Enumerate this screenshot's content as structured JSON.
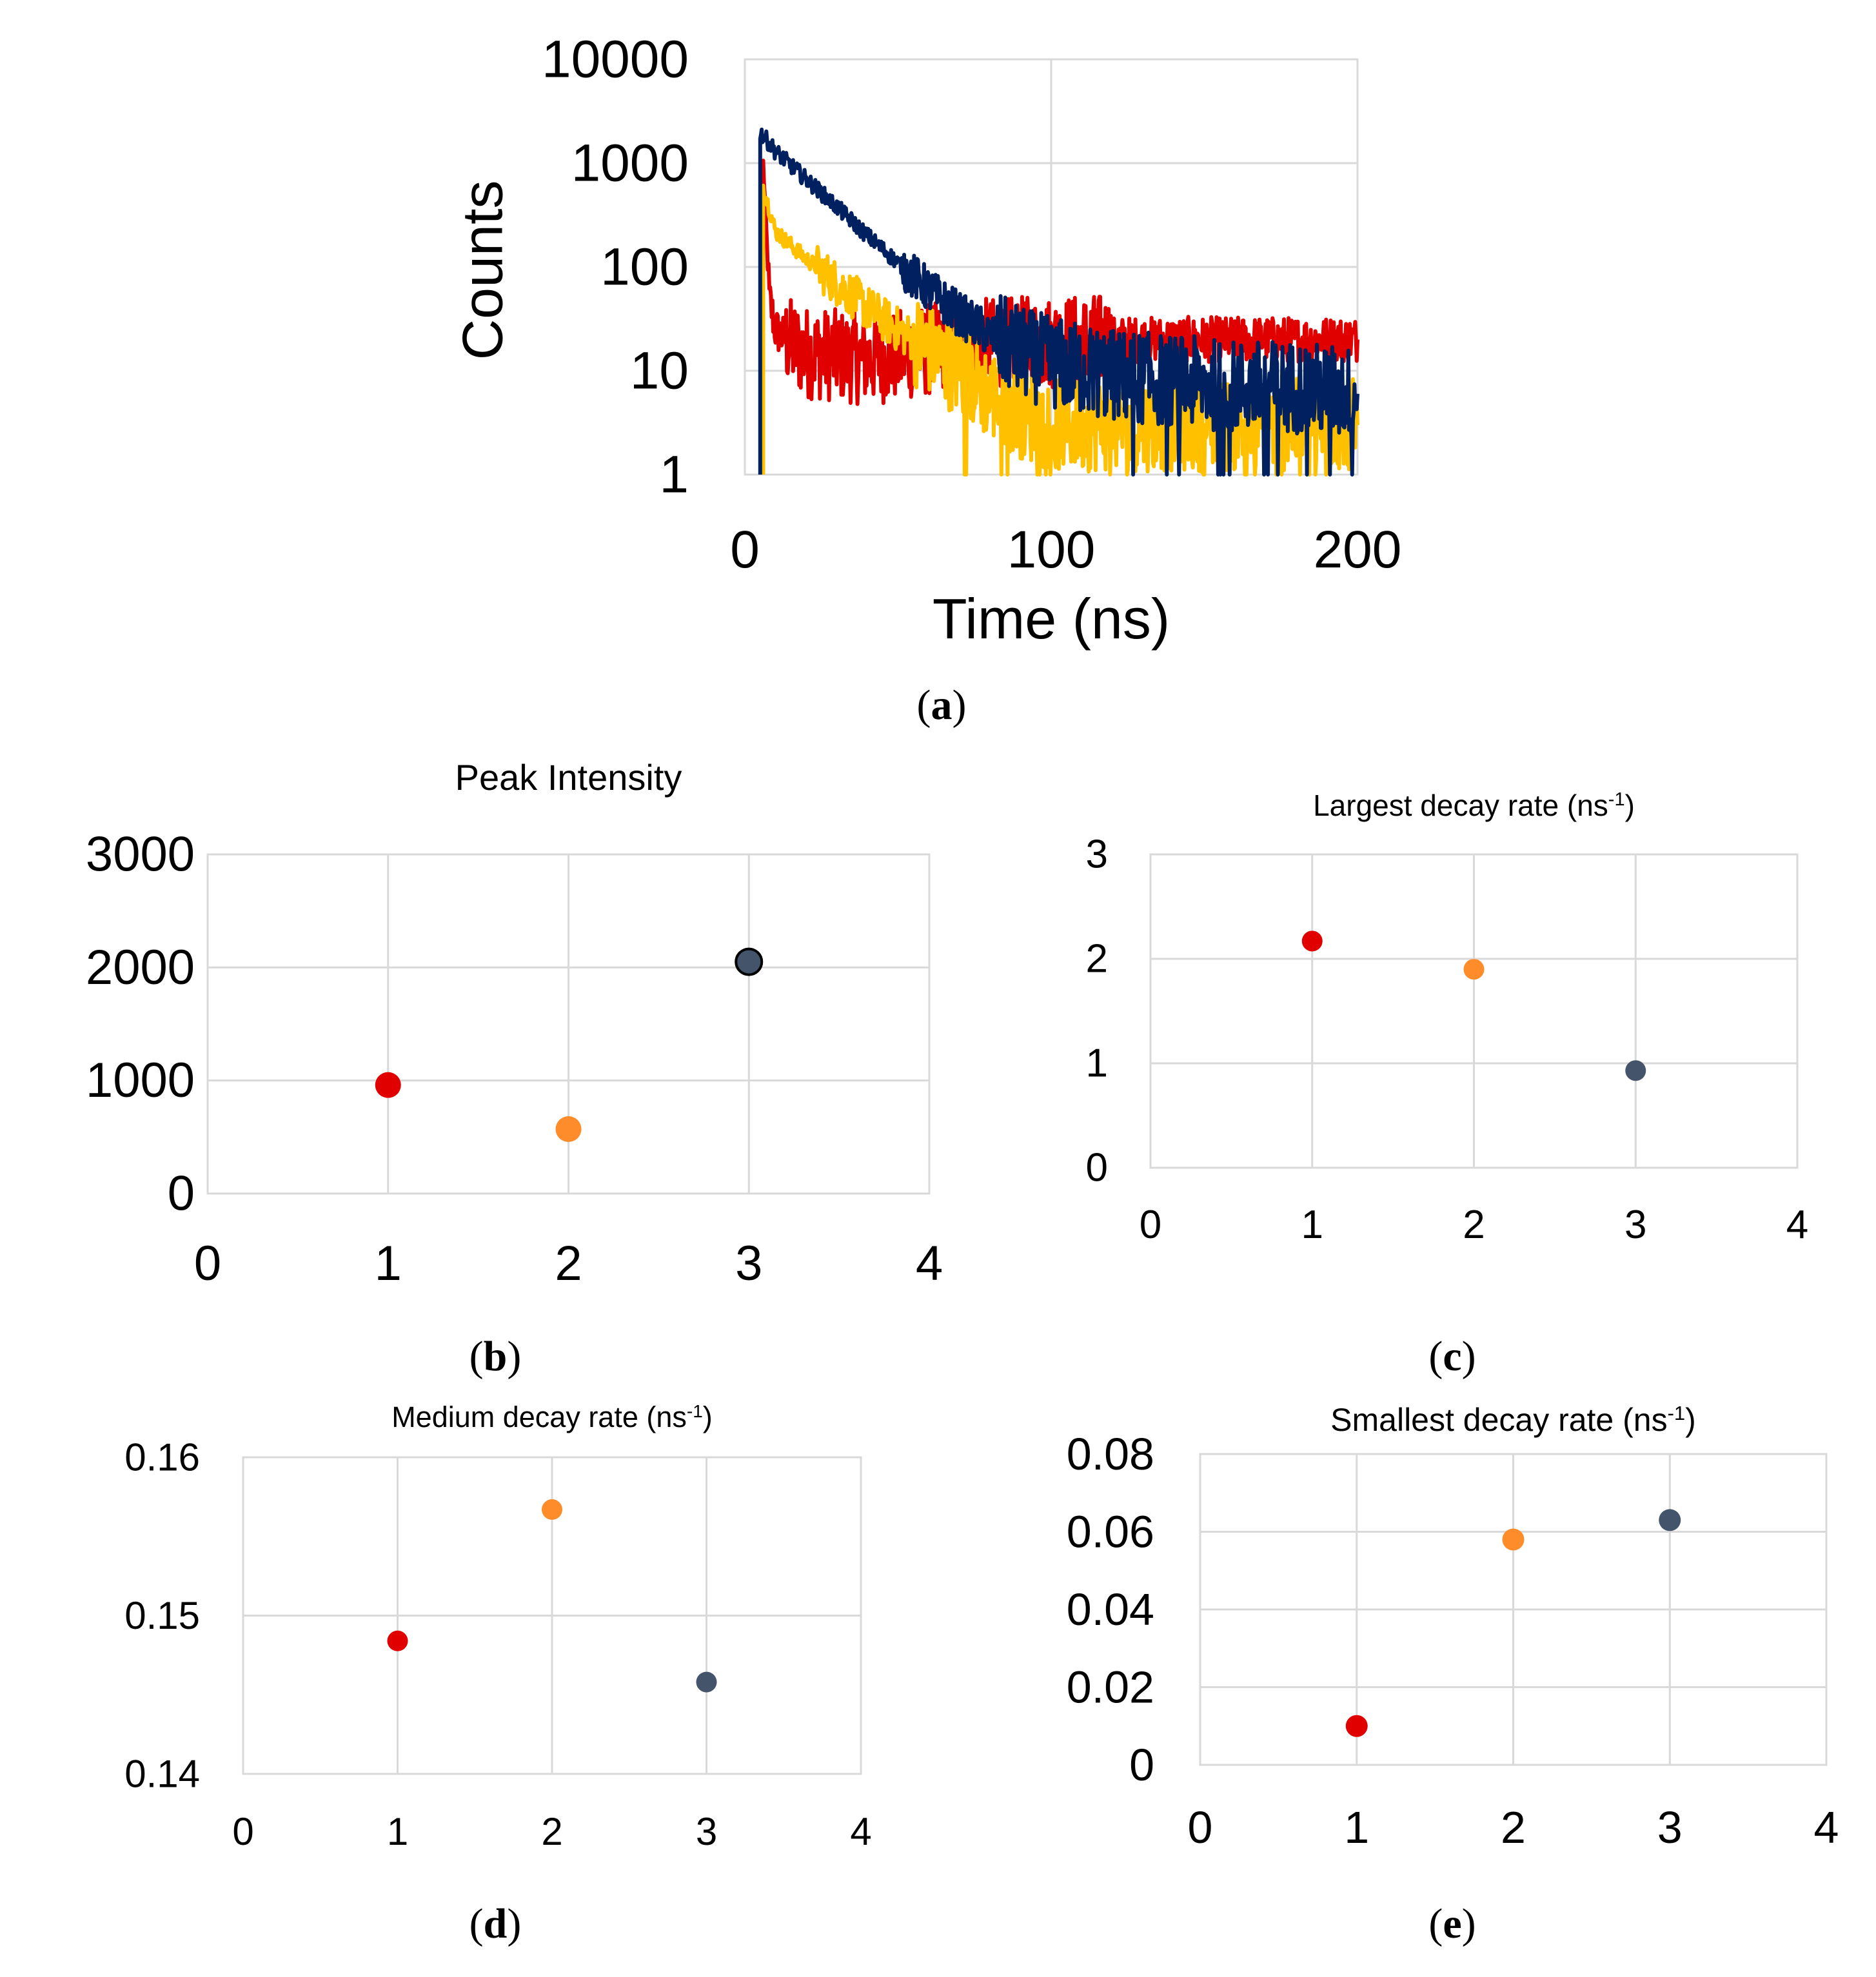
{
  "chart_data": [
    {
      "id": "a",
      "type": "line",
      "panel_label": "a",
      "title": "",
      "xlabel": "Time (ns)",
      "ylabel": "Counts",
      "x_scale": "linear",
      "y_scale": "log",
      "xlim": [
        0,
        200
      ],
      "ylim": [
        1,
        10000
      ],
      "x_ticks": [
        "0",
        "100",
        "200"
      ],
      "y_ticks": [
        "1",
        "10",
        "100",
        "1000",
        "10000"
      ],
      "grid": true,
      "legend": "none",
      "series": [
        {
          "color": "#e00000",
          "peak_time_ns": 6,
          "peak_counts": 1000,
          "x": [
            6,
            8,
            10,
            15,
            20,
            30,
            40,
            50,
            60,
            80,
            100,
            120,
            140,
            160,
            180,
            200
          ],
          "y": [
            1000,
            50,
            25,
            18,
            15,
            14,
            13,
            14,
            16,
            18,
            19,
            20,
            20,
            20,
            20,
            20
          ]
        },
        {
          "color": "#ffc000",
          "peak_time_ns": 6,
          "peak_counts": 600,
          "x": [
            6,
            10,
            20,
            30,
            40,
            50,
            60,
            70,
            80,
            90,
            100,
            120,
            140,
            160,
            180,
            200
          ],
          "y": [
            600,
            220,
            120,
            70,
            40,
            25,
            16,
            10,
            6,
            4,
            3,
            3,
            3,
            3,
            3,
            3
          ]
        },
        {
          "color": "#002060",
          "peak_time_ns": 5,
          "peak_counts": 2000,
          "x": [
            5,
            10,
            20,
            30,
            40,
            50,
            60,
            70,
            80,
            90,
            100,
            120,
            140,
            160,
            180,
            200
          ],
          "y": [
            2000,
            1300,
            700,
            380,
            200,
            110,
            60,
            35,
            22,
            15,
            12,
            9,
            8,
            7,
            7,
            6
          ]
        }
      ]
    },
    {
      "id": "b",
      "type": "scatter",
      "panel_label": "b",
      "title": "Peak Intensity",
      "xlim": [
        0,
        4
      ],
      "ylim": [
        0,
        3000
      ],
      "x_ticks": [
        "0",
        "1",
        "2",
        "3",
        "4"
      ],
      "y_ticks": [
        "0",
        "1000",
        "2000",
        "3000"
      ],
      "grid": true,
      "legend": "none",
      "points": [
        {
          "x": 1,
          "y": 960,
          "color": "#e00000"
        },
        {
          "x": 2,
          "y": 570,
          "color": "#ff8c2a"
        },
        {
          "x": 3,
          "y": 2050,
          "color": "#44546a",
          "outline": "#000000"
        }
      ]
    },
    {
      "id": "c",
      "type": "scatter",
      "panel_label": "c",
      "title": "Largest decay rate (ns",
      "title_sup": "-1",
      "title_end": ")",
      "xlim": [
        0,
        4
      ],
      "ylim": [
        0,
        3
      ],
      "x_ticks": [
        "0",
        "1",
        "2",
        "3",
        "4"
      ],
      "y_ticks": [
        "0",
        "1",
        "2",
        "3"
      ],
      "grid": true,
      "legend": "none",
      "points": [
        {
          "x": 1,
          "y": 2.17,
          "color": "#e00000"
        },
        {
          "x": 2,
          "y": 1.9,
          "color": "#ff8c2a"
        },
        {
          "x": 3,
          "y": 0.93,
          "color": "#44546a"
        }
      ]
    },
    {
      "id": "d",
      "type": "scatter",
      "panel_label": "d",
      "title": "Medium decay rate (ns",
      "title_sup": "-1",
      "title_end": ")",
      "xlim": [
        0,
        4
      ],
      "ylim": [
        0.14,
        0.16
      ],
      "x_ticks": [
        "0",
        "1",
        "2",
        "3",
        "4"
      ],
      "y_ticks": [
        "0.14",
        "0.15",
        "0.16"
      ],
      "grid": true,
      "legend": "none",
      "points": [
        {
          "x": 1,
          "y": 0.1484,
          "color": "#e00000"
        },
        {
          "x": 2,
          "y": 0.1567,
          "color": "#ff8c2a"
        },
        {
          "x": 3,
          "y": 0.1458,
          "color": "#44546a"
        }
      ]
    },
    {
      "id": "e",
      "type": "scatter",
      "panel_label": "e",
      "title": "Smallest decay rate (ns",
      "title_sup": "-1",
      "title_end": ")",
      "xlim": [
        0,
        4
      ],
      "ylim": [
        0,
        0.08
      ],
      "x_ticks": [
        "0",
        "1",
        "2",
        "3",
        "4"
      ],
      "y_ticks": [
        "0",
        "0.02",
        "0.04",
        "0.06",
        "0.08"
      ],
      "grid": true,
      "legend": "none",
      "points": [
        {
          "x": 1,
          "y": 0.01,
          "color": "#e00000"
        },
        {
          "x": 2,
          "y": 0.058,
          "color": "#ff8c2a"
        },
        {
          "x": 3,
          "y": 0.063,
          "color": "#44546a"
        }
      ]
    }
  ]
}
